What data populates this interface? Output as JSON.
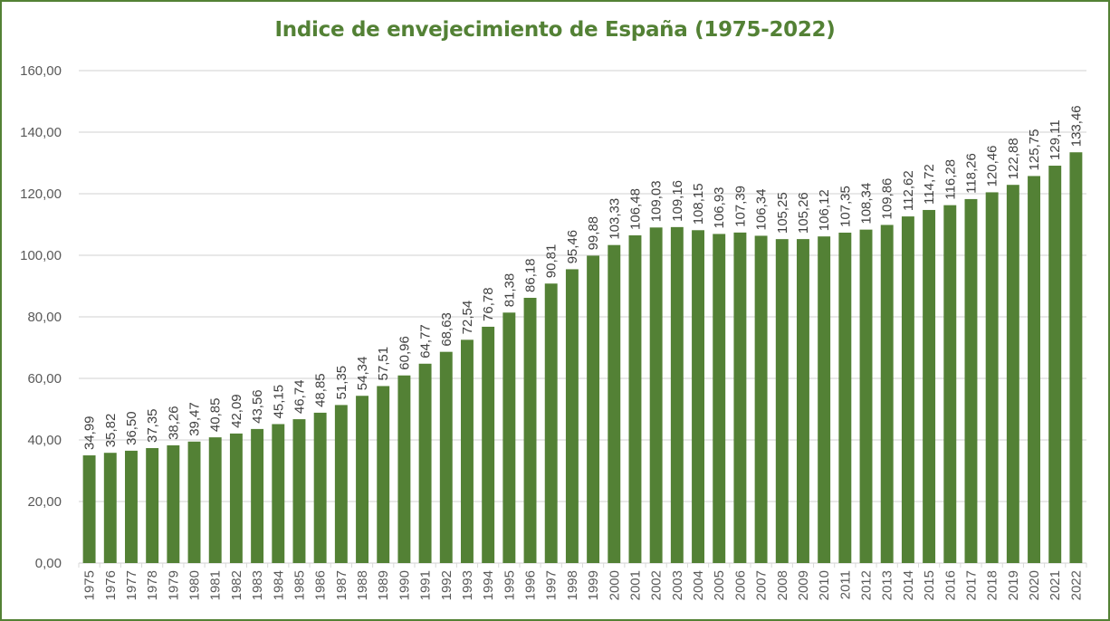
{
  "chart_data": {
    "type": "bar",
    "title": "Indice de envejecimiento de España (1975-2022)",
    "xlabel": "",
    "ylabel": "",
    "ylim": [
      0,
      160
    ],
    "yticks": [
      "0,00",
      "20,00",
      "40,00",
      "60,00",
      "80,00",
      "100,00",
      "120,00",
      "140,00",
      "160,00"
    ],
    "ytick_values": [
      0,
      20,
      40,
      60,
      80,
      100,
      120,
      140,
      160
    ],
    "grid": true,
    "legend": "none",
    "bar_color": "#538135",
    "categories": [
      "1975",
      "1976",
      "1977",
      "1978",
      "1979",
      "1980",
      "1981",
      "1982",
      "1983",
      "1984",
      "1985",
      "1986",
      "1987",
      "1988",
      "1989",
      "1990",
      "1991",
      "1992",
      "1993",
      "1994",
      "1995",
      "1996",
      "1997",
      "1998",
      "1999",
      "2000",
      "2001",
      "2002",
      "2003",
      "2004",
      "2005",
      "2006",
      "2007",
      "2008",
      "2009",
      "2010",
      "2011",
      "2012",
      "2013",
      "2014",
      "2015",
      "2016",
      "2017",
      "2018",
      "2019",
      "2020",
      "2021",
      "2022"
    ],
    "values": [
      34.99,
      35.82,
      36.5,
      37.35,
      38.26,
      39.47,
      40.85,
      42.09,
      43.56,
      45.15,
      46.74,
      48.85,
      51.35,
      54.34,
      57.51,
      60.96,
      64.77,
      68.63,
      72.54,
      76.78,
      81.38,
      86.18,
      90.81,
      95.46,
      99.88,
      103.33,
      106.48,
      109.03,
      109.16,
      108.15,
      106.93,
      107.39,
      106.34,
      105.25,
      105.26,
      106.12,
      107.35,
      108.34,
      109.86,
      112.62,
      114.72,
      116.28,
      118.26,
      120.46,
      122.88,
      125.75,
      129.11,
      133.46
    ],
    "labels": [
      "34,99",
      "35,82",
      "36,50",
      "37,35",
      "38,26",
      "39,47",
      "40,85",
      "42,09",
      "43,56",
      "45,15",
      "46,74",
      "48,85",
      "51,35",
      "54,34",
      "57,51",
      "60,96",
      "64,77",
      "68,63",
      "72,54",
      "76,78",
      "81,38",
      "86,18",
      "90,81",
      "95,46",
      "99,88",
      "103,33",
      "106,48",
      "109,03",
      "109,16",
      "108,15",
      "106,93",
      "107,39",
      "106,34",
      "105,25",
      "105,26",
      "106,12",
      "107,35",
      "108,34",
      "109,86",
      "112,62",
      "114,72",
      "116,28",
      "118,26",
      "120,46",
      "122,88",
      "125,75",
      "129,11",
      "133,46"
    ]
  }
}
